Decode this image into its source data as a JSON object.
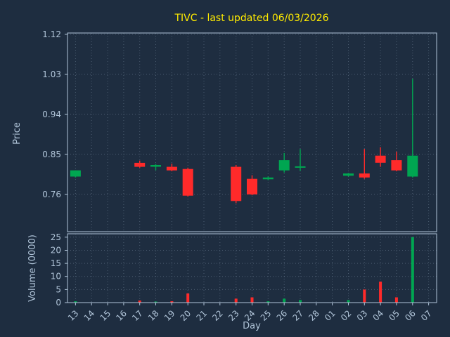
{
  "chart_data": {
    "type": "candlestick",
    "title": "TIVC - last updated 06/03/2026",
    "xlabel": "Day",
    "ylabel_price": "Price",
    "ylabel_volume": "Volume (0000)",
    "x_ticklabels": [
      "13",
      "14",
      "15",
      "16",
      "17",
      "18",
      "19",
      "20",
      "21",
      "22",
      "23",
      "24",
      "25",
      "26",
      "27",
      "28",
      "01",
      "02",
      "03",
      "04",
      "05",
      "06",
      "07"
    ],
    "price_ticks": [
      0.76,
      0.85,
      0.94,
      1.03,
      1.12
    ],
    "price_ylim": [
      0.676,
      1.123
    ],
    "volume_ticks": [
      0,
      5,
      10,
      15,
      20,
      25
    ],
    "volume_ylim": [
      0,
      26.3
    ],
    "grid": "dotted",
    "legend": "none",
    "up_color": "#00a651",
    "down_color": "#ff2a2a",
    "background_color": "#1e2d40",
    "title_color": "#ffeb00",
    "tick_color": "#b0c4d8",
    "candles": [
      {
        "day": "13",
        "open": 0.8,
        "high": 0.814,
        "low": 0.798,
        "close": 0.814,
        "volume": 0.5
      },
      {
        "day": "17",
        "open": 0.831,
        "high": 0.836,
        "low": 0.82,
        "close": 0.822,
        "volume": 0.8
      },
      {
        "day": "18",
        "open": 0.822,
        "high": 0.828,
        "low": 0.814,
        "close": 0.826,
        "volume": 0.4
      },
      {
        "day": "19",
        "open": 0.822,
        "high": 0.829,
        "low": 0.812,
        "close": 0.814,
        "volume": 0.5
      },
      {
        "day": "20",
        "open": 0.817,
        "high": 0.82,
        "low": 0.755,
        "close": 0.757,
        "volume": 3.5
      },
      {
        "day": "23",
        "open": 0.822,
        "high": 0.826,
        "low": 0.74,
        "close": 0.745,
        "volume": 1.5
      },
      {
        "day": "24",
        "open": 0.795,
        "high": 0.803,
        "low": 0.758,
        "close": 0.76,
        "volume": 2.0
      },
      {
        "day": "25",
        "open": 0.794,
        "high": 0.8,
        "low": 0.792,
        "close": 0.798,
        "volume": 0.5
      },
      {
        "day": "26",
        "open": 0.814,
        "high": 0.853,
        "low": 0.809,
        "close": 0.837,
        "volume": 1.5
      },
      {
        "day": "27",
        "open": 0.82,
        "high": 0.862,
        "low": 0.813,
        "close": 0.823,
        "volume": 1.0
      },
      {
        "day": "02",
        "open": 0.802,
        "high": 0.808,
        "low": 0.8,
        "close": 0.807,
        "volume": 1.0
      },
      {
        "day": "03",
        "open": 0.807,
        "high": 0.862,
        "low": 0.795,
        "close": 0.798,
        "volume": 5.0
      },
      {
        "day": "04",
        "open": 0.847,
        "high": 0.866,
        "low": 0.822,
        "close": 0.831,
        "volume": 8.0
      },
      {
        "day": "05",
        "open": 0.837,
        "high": 0.856,
        "low": 0.812,
        "close": 0.814,
        "volume": 2.0
      },
      {
        "day": "06",
        "open": 0.8,
        "high": 1.02,
        "low": 0.798,
        "close": 0.847,
        "volume": 25.0
      }
    ]
  }
}
